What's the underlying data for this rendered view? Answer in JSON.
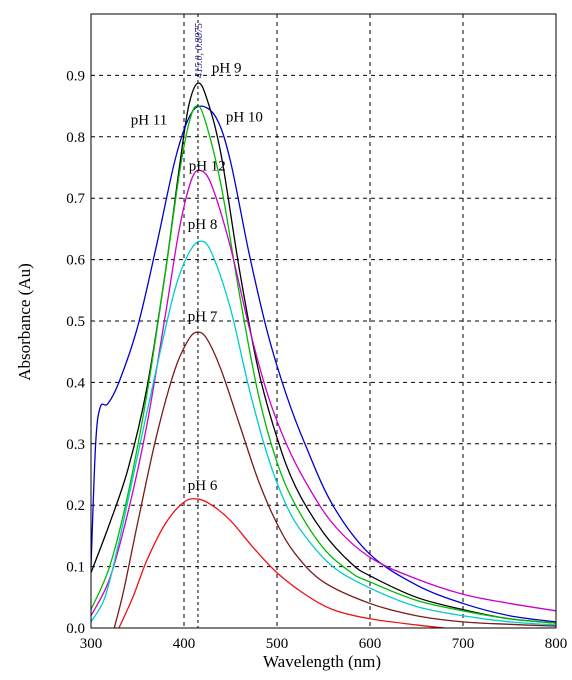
{
  "chart_data": {
    "type": "line",
    "title": "",
    "xlabel": "Wavelength (nm)",
    "ylabel": "Absorbance (Au)",
    "xlim": [
      300,
      800
    ],
    "ylim": [
      0,
      1.0
    ],
    "x_ticks": [
      {
        "value": 300,
        "label": "300"
      },
      {
        "value": 400,
        "label": "400"
      },
      {
        "value": 500,
        "label": "500"
      },
      {
        "value": 600,
        "label": "600"
      },
      {
        "value": 700,
        "label": "700"
      },
      {
        "value": 800,
        "label": "800"
      }
    ],
    "y_ticks": [
      {
        "value": 0.0,
        "label": "0.0"
      },
      {
        "value": 0.1,
        "label": "0.1"
      },
      {
        "value": 0.2,
        "label": "0.2"
      },
      {
        "value": 0.3,
        "label": "0.3"
      },
      {
        "value": 0.4,
        "label": "0.4"
      },
      {
        "value": 0.5,
        "label": "0.5"
      },
      {
        "value": 0.6,
        "label": "0.6"
      },
      {
        "value": 0.7,
        "label": "0.7"
      },
      {
        "value": 0.8,
        "label": "0.8"
      },
      {
        "value": 0.9,
        "label": "0.9"
      }
    ],
    "grid": true,
    "grid_style": "dashed",
    "legend": "none",
    "peak_marker": {
      "x": 415.0,
      "label": "415.0, 0.8875"
    },
    "series": [
      {
        "name": "pH 9",
        "color": "#000000",
        "points": [
          [
            300,
            0.09
          ],
          [
            320,
            0.17
          ],
          [
            340,
            0.26
          ],
          [
            360,
            0.39
          ],
          [
            380,
            0.58
          ],
          [
            395,
            0.75
          ],
          [
            405,
            0.85
          ],
          [
            415,
            0.8875
          ],
          [
            425,
            0.86
          ],
          [
            440,
            0.77
          ],
          [
            460,
            0.58
          ],
          [
            480,
            0.42
          ],
          [
            500,
            0.31
          ],
          [
            520,
            0.23
          ],
          [
            550,
            0.155
          ],
          [
            580,
            0.105
          ],
          [
            600,
            0.085
          ],
          [
            650,
            0.05
          ],
          [
            700,
            0.03
          ],
          [
            750,
            0.015
          ],
          [
            800,
            0.008
          ]
        ]
      },
      {
        "name": "pH 10",
        "color": "#0000cc",
        "points": [
          [
            300,
            0.1
          ],
          [
            305,
            0.3
          ],
          [
            310,
            0.36
          ],
          [
            318,
            0.365
          ],
          [
            330,
            0.4
          ],
          [
            350,
            0.49
          ],
          [
            370,
            0.62
          ],
          [
            390,
            0.76
          ],
          [
            405,
            0.83
          ],
          [
            418,
            0.85
          ],
          [
            435,
            0.83
          ],
          [
            450,
            0.76
          ],
          [
            470,
            0.61
          ],
          [
            490,
            0.48
          ],
          [
            510,
            0.38
          ],
          [
            530,
            0.3
          ],
          [
            560,
            0.2
          ],
          [
            600,
            0.12
          ],
          [
            650,
            0.07
          ],
          [
            700,
            0.04
          ],
          [
            750,
            0.02
          ],
          [
            800,
            0.01
          ]
        ]
      },
      {
        "name": "pH 11",
        "color": "#00bb00",
        "points": [
          [
            300,
            0.03
          ],
          [
            320,
            0.1
          ],
          [
            340,
            0.22
          ],
          [
            360,
            0.38
          ],
          [
            380,
            0.58
          ],
          [
            395,
            0.74
          ],
          [
            405,
            0.82
          ],
          [
            413,
            0.85
          ],
          [
            422,
            0.83
          ],
          [
            440,
            0.72
          ],
          [
            460,
            0.54
          ],
          [
            480,
            0.38
          ],
          [
            500,
            0.27
          ],
          [
            520,
            0.2
          ],
          [
            550,
            0.13
          ],
          [
            580,
            0.09
          ],
          [
            600,
            0.075
          ],
          [
            650,
            0.045
          ],
          [
            700,
            0.028
          ],
          [
            750,
            0.015
          ],
          [
            800,
            0.008
          ]
        ]
      },
      {
        "name": "pH 12",
        "color": "#cc00cc",
        "points": [
          [
            300,
            0.02
          ],
          [
            320,
            0.08
          ],
          [
            340,
            0.19
          ],
          [
            360,
            0.33
          ],
          [
            380,
            0.51
          ],
          [
            395,
            0.65
          ],
          [
            408,
            0.73
          ],
          [
            418,
            0.745
          ],
          [
            430,
            0.72
          ],
          [
            450,
            0.62
          ],
          [
            470,
            0.49
          ],
          [
            490,
            0.38
          ],
          [
            510,
            0.3
          ],
          [
            530,
            0.24
          ],
          [
            560,
            0.17
          ],
          [
            600,
            0.115
          ],
          [
            650,
            0.08
          ],
          [
            700,
            0.055
          ],
          [
            750,
            0.04
          ],
          [
            800,
            0.028
          ]
        ]
      },
      {
        "name": "pH 8",
        "color": "#00cccc",
        "points": [
          [
            300,
            0.01
          ],
          [
            315,
            0.05
          ],
          [
            330,
            0.14
          ],
          [
            350,
            0.28
          ],
          [
            370,
            0.42
          ],
          [
            390,
            0.55
          ],
          [
            405,
            0.61
          ],
          [
            418,
            0.63
          ],
          [
            430,
            0.61
          ],
          [
            450,
            0.52
          ],
          [
            470,
            0.39
          ],
          [
            490,
            0.28
          ],
          [
            510,
            0.2
          ],
          [
            530,
            0.15
          ],
          [
            560,
            0.1
          ],
          [
            600,
            0.065
          ],
          [
            650,
            0.035
          ],
          [
            700,
            0.02
          ],
          [
            750,
            0.01
          ],
          [
            800,
            0.005
          ]
        ]
      },
      {
        "name": "pH 7",
        "color": "#7a1a1a",
        "points": [
          [
            325,
            0.0
          ],
          [
            335,
            0.06
          ],
          [
            350,
            0.17
          ],
          [
            370,
            0.31
          ],
          [
            390,
            0.42
          ],
          [
            405,
            0.47
          ],
          [
            415,
            0.482
          ],
          [
            425,
            0.47
          ],
          [
            440,
            0.42
          ],
          [
            460,
            0.33
          ],
          [
            480,
            0.24
          ],
          [
            500,
            0.17
          ],
          [
            520,
            0.12
          ],
          [
            550,
            0.075
          ],
          [
            600,
            0.04
          ],
          [
            650,
            0.02
          ],
          [
            700,
            0.01
          ],
          [
            750,
            0.006
          ],
          [
            800,
            0.003
          ]
        ]
      },
      {
        "name": "pH 6",
        "color": "#ee1111",
        "points": [
          [
            330,
            0.0
          ],
          [
            345,
            0.05
          ],
          [
            360,
            0.11
          ],
          [
            380,
            0.17
          ],
          [
            400,
            0.205
          ],
          [
            415,
            0.21
          ],
          [
            430,
            0.2
          ],
          [
            450,
            0.175
          ],
          [
            475,
            0.13
          ],
          [
            500,
            0.09
          ],
          [
            530,
            0.055
          ],
          [
            560,
            0.03
          ],
          [
            600,
            0.015
          ],
          [
            650,
            0.005
          ],
          [
            680,
            0.0
          ]
        ]
      }
    ],
    "annotations": [
      {
        "label": "pH 9",
        "x": 430,
        "y": 0.905,
        "anchor": "start"
      },
      {
        "label": "pH 10",
        "x": 445,
        "y": 0.825,
        "anchor": "start"
      },
      {
        "label": "pH 11",
        "x": 382,
        "y": 0.82,
        "anchor": "end"
      },
      {
        "label": "pH 12",
        "x": 425,
        "y": 0.745,
        "anchor": "middle"
      },
      {
        "label": "pH 8",
        "x": 420,
        "y": 0.65,
        "anchor": "middle"
      },
      {
        "label": "pH 7",
        "x": 420,
        "y": 0.5,
        "anchor": "middle"
      },
      {
        "label": "pH 6",
        "x": 420,
        "y": 0.225,
        "anchor": "middle"
      }
    ]
  }
}
